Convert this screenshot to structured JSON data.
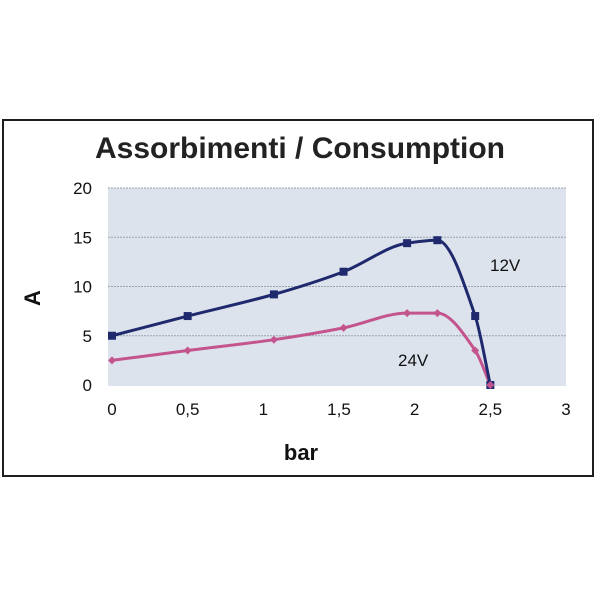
{
  "chart_data": {
    "type": "line",
    "title": "Assorbimenti / Consumption",
    "xlabel": "bar",
    "ylabel": "A",
    "xlim": [
      0,
      3
    ],
    "ylim": [
      0,
      20
    ],
    "x_ticks": [
      "0",
      "0,5",
      "1",
      "1,5",
      "2",
      "2,5",
      "3"
    ],
    "y_ticks": [
      "0",
      "5",
      "10",
      "15",
      "20"
    ],
    "grid": true,
    "series": [
      {
        "name": "12V",
        "color": "#1f2a6e",
        "marker": "square",
        "x": [
          0,
          0.5,
          1.07,
          1.53,
          1.95,
          2.15,
          2.4,
          2.5
        ],
        "y": [
          5.0,
          7.0,
          9.2,
          11.5,
          14.4,
          14.7,
          7.0,
          0.0
        ]
      },
      {
        "name": "24V",
        "color": "#c4548e",
        "marker": "diamond",
        "x": [
          0,
          0.5,
          1.07,
          1.53,
          1.95,
          2.15,
          2.4,
          2.5
        ],
        "y": [
          2.5,
          3.5,
          4.6,
          5.8,
          7.3,
          7.3,
          3.5,
          0.0
        ]
      }
    ]
  }
}
